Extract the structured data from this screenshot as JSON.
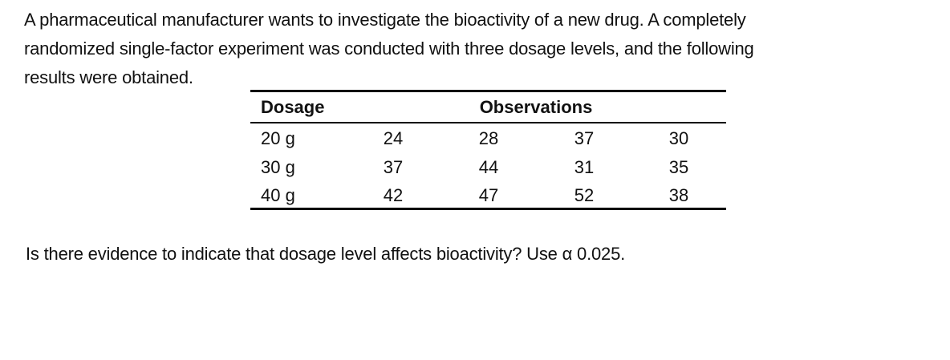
{
  "intro": {
    "lines": [
      "A pharmaceutical manufacturer wants to investigate the bioactivity of a new drug. A completely",
      "randomized single-factor experiment was conducted with three dosage levels, and the following",
      "results were obtained."
    ]
  },
  "table": {
    "header": [
      "Dosage",
      "Observations"
    ],
    "rows": [
      [
        "20 g",
        "24",
        "28",
        "37",
        "30"
      ],
      [
        "30 g",
        "37",
        "44",
        "31",
        "35"
      ],
      [
        "40 g",
        "42",
        "47",
        "52",
        "38"
      ]
    ]
  },
  "question": "Is there evidence to indicate that dosage level affects bioactivity? Use α 0.025."
}
